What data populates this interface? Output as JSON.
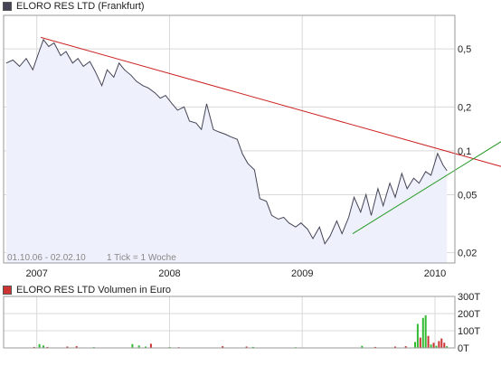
{
  "chart_data": [
    {
      "type": "line",
      "title": "ELORO RES LTD (Frankfurt)",
      "range_label": "01.10.06 - 02.02.10",
      "tick_label": "1 Tick = 1 Woche",
      "y_scale": "log",
      "ylim": [
        0.017,
        0.85
      ],
      "xlim": [
        2006.75,
        2010.15
      ],
      "y_ticks": [
        {
          "label": "0,5",
          "value": 0.5
        },
        {
          "label": "0,2",
          "value": 0.2
        },
        {
          "label": "0,1",
          "value": 0.1
        },
        {
          "label": "0,05",
          "value": 0.05
        },
        {
          "label": "0,02",
          "value": 0.02
        }
      ],
      "x_ticks": [
        {
          "label": "2007",
          "value": 2007.0
        },
        {
          "label": "2008",
          "value": 2008.0
        },
        {
          "label": "2009",
          "value": 2009.0
        },
        {
          "label": "2010",
          "value": 2010.0
        }
      ],
      "grid": true,
      "colors": {
        "price": "#444455",
        "fill": "#eef0fb",
        "trend_down": "#cc2222",
        "trend_up": "#229922",
        "grid": "#d9d9d9"
      },
      "series": [
        {
          "name": "",
          "x": [
            2006.77,
            2006.82,
            2006.87,
            2006.92,
            2006.97,
            2007.01,
            2007.05,
            2007.09,
            2007.13,
            2007.18,
            2007.22,
            2007.27,
            2007.31,
            2007.35,
            2007.4,
            2007.44,
            2007.49,
            2007.53,
            2007.58,
            2007.62,
            2007.66,
            2007.71,
            2007.75,
            2007.8,
            2007.84,
            2007.89,
            2007.93,
            2007.97,
            2008.02,
            2008.06,
            2008.11,
            2008.15,
            2008.2,
            2008.24,
            2008.28,
            2008.33,
            2008.37,
            2008.42,
            2008.46,
            2008.51,
            2008.55,
            2008.59,
            2008.64,
            2008.68,
            2008.73,
            2008.77,
            2008.82,
            2008.86,
            2008.9,
            2008.95,
            2008.99,
            2009.04,
            2009.08,
            2009.13,
            2009.17,
            2009.21,
            2009.26,
            2009.3,
            2009.35,
            2009.39,
            2009.44,
            2009.48,
            2009.52,
            2009.57,
            2009.61,
            2009.66,
            2009.7,
            2009.75,
            2009.79,
            2009.84,
            2009.88,
            2009.93,
            2009.97,
            2010.02,
            2010.06,
            2010.09
          ],
          "values": [
            0.4,
            0.42,
            0.38,
            0.43,
            0.36,
            0.46,
            0.58,
            0.52,
            0.55,
            0.45,
            0.48,
            0.4,
            0.43,
            0.38,
            0.41,
            0.35,
            0.28,
            0.36,
            0.32,
            0.4,
            0.36,
            0.33,
            0.3,
            0.28,
            0.27,
            0.25,
            0.23,
            0.24,
            0.21,
            0.19,
            0.2,
            0.16,
            0.155,
            0.14,
            0.21,
            0.14,
            0.135,
            0.13,
            0.125,
            0.12,
            0.095,
            0.082,
            0.074,
            0.047,
            0.045,
            0.036,
            0.034,
            0.035,
            0.032,
            0.03,
            0.032,
            0.029,
            0.025,
            0.03,
            0.023,
            0.026,
            0.033,
            0.027,
            0.035,
            0.048,
            0.038,
            0.05,
            0.036,
            0.055,
            0.042,
            0.06,
            0.048,
            0.07,
            0.055,
            0.065,
            0.06,
            0.072,
            0.068,
            0.096,
            0.08,
            0.073
          ]
        }
      ],
      "trendlines": [
        {
          "color": "red",
          "x": [
            2007.03,
            2010.5
          ],
          "values": [
            0.6,
            0.078
          ]
        },
        {
          "color": "green",
          "x": [
            2009.38,
            2010.5
          ],
          "values": [
            0.027,
            0.116
          ]
        }
      ]
    },
    {
      "type": "bar",
      "title": "ELORO RES LTD Volumen in Euro",
      "unit": "T",
      "ylim": [
        0,
        300
      ],
      "y_ticks": [
        {
          "label": "300T",
          "value": 300
        },
        {
          "label": "200T",
          "value": 200
        },
        {
          "label": "100T",
          "value": 100
        },
        {
          "label": "0T",
          "value": 0
        }
      ],
      "x_ticks": [
        {
          "label": "",
          "value": 2007.0
        },
        {
          "label": "",
          "value": 2008.0
        },
        {
          "label": "",
          "value": 2009.0
        },
        {
          "label": "",
          "value": 2010.0
        }
      ],
      "colors": {
        "up": "#33bb33",
        "down": "#cc3333"
      },
      "bars": [
        {
          "x": 2006.98,
          "value": 6,
          "dir": "down"
        },
        {
          "x": 2007.02,
          "value": 22,
          "dir": "up"
        },
        {
          "x": 2007.05,
          "value": 14,
          "dir": "up"
        },
        {
          "x": 2007.08,
          "value": 6,
          "dir": "down"
        },
        {
          "x": 2007.23,
          "value": 8,
          "dir": "down"
        },
        {
          "x": 2007.3,
          "value": 10,
          "dir": "down"
        },
        {
          "x": 2007.43,
          "value": 5,
          "dir": "up"
        },
        {
          "x": 2007.72,
          "value": 22,
          "dir": "up"
        },
        {
          "x": 2007.77,
          "value": 14,
          "dir": "up"
        },
        {
          "x": 2007.82,
          "value": 8,
          "dir": "up"
        },
        {
          "x": 2007.86,
          "value": 24,
          "dir": "down"
        },
        {
          "x": 2008.0,
          "value": 5,
          "dir": "up"
        },
        {
          "x": 2008.07,
          "value": 4,
          "dir": "down"
        },
        {
          "x": 2008.4,
          "value": 10,
          "dir": "down"
        },
        {
          "x": 2008.58,
          "value": 8,
          "dir": "down"
        },
        {
          "x": 2008.63,
          "value": 6,
          "dir": "up"
        },
        {
          "x": 2008.95,
          "value": 4,
          "dir": "up"
        },
        {
          "x": 2009.45,
          "value": 12,
          "dir": "up"
        },
        {
          "x": 2009.55,
          "value": 6,
          "dir": "down"
        },
        {
          "x": 2009.7,
          "value": 8,
          "dir": "down"
        },
        {
          "x": 2009.78,
          "value": 10,
          "dir": "down"
        },
        {
          "x": 2009.85,
          "value": 35,
          "dir": "up"
        },
        {
          "x": 2009.87,
          "value": 140,
          "dir": "up"
        },
        {
          "x": 2009.89,
          "value": 60,
          "dir": "down"
        },
        {
          "x": 2009.91,
          "value": 175,
          "dir": "up"
        },
        {
          "x": 2009.93,
          "value": 190,
          "dir": "up"
        },
        {
          "x": 2009.95,
          "value": 70,
          "dir": "down"
        },
        {
          "x": 2009.97,
          "value": 20,
          "dir": "up"
        },
        {
          "x": 2009.99,
          "value": 30,
          "dir": "down"
        },
        {
          "x": 2010.01,
          "value": 12,
          "dir": "up"
        },
        {
          "x": 2010.03,
          "value": 40,
          "dir": "down"
        },
        {
          "x": 2010.05,
          "value": 55,
          "dir": "down"
        },
        {
          "x": 2010.07,
          "value": 30,
          "dir": "down"
        },
        {
          "x": 2010.09,
          "value": 10,
          "dir": "up"
        }
      ]
    }
  ]
}
